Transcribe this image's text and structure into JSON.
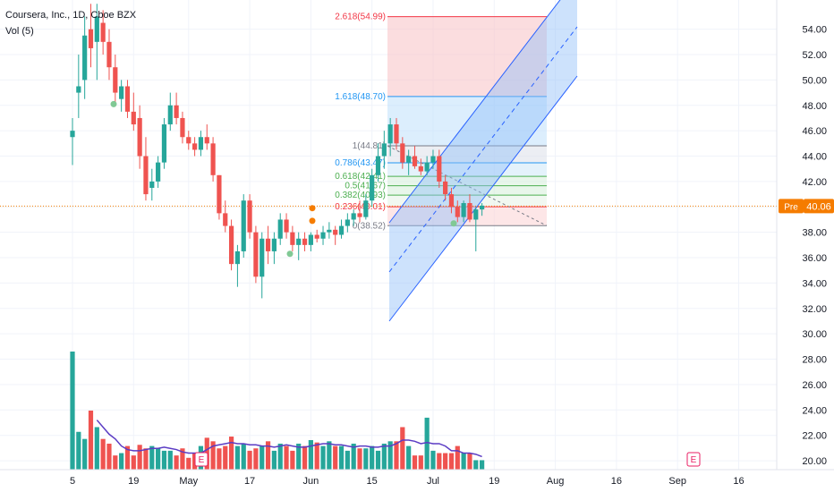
{
  "chart_title": "Coursera, Inc., 1D, Cboe BZX",
  "volume_label": "Vol (5)",
  "current_price": "40.06",
  "price_tag_prefix": "Pre",
  "colors": {
    "up": "#26a69a",
    "down": "#ef5350",
    "grid": "#f0f3fa",
    "vol_ma": "#5b3cc4",
    "channel_fill": "#90bff9",
    "channel_line": "#2962ff",
    "fib_red": "#f23645",
    "fib_blue": "#2196f3",
    "fib_green": "#4caf50",
    "fib_gray": "#787b86",
    "earnings": "#e91e63",
    "dividend": "#f57c00"
  },
  "chart_data": {
    "type": "candlestick",
    "y_axis": {
      "ylim": [
        19.3,
        56.3
      ],
      "ticks": [
        20,
        22,
        24,
        26,
        28,
        30,
        32,
        34,
        36,
        38,
        40,
        42,
        44,
        46,
        48,
        50,
        52,
        54
      ]
    },
    "x_axis_labels": [
      {
        "label": "5",
        "x_index": 0
      },
      {
        "label": "19",
        "x_index": 10
      },
      {
        "label": "May",
        "x_index": 19
      },
      {
        "label": "17",
        "x_index": 29
      },
      {
        "label": "Jun",
        "x_index": 39
      },
      {
        "label": "15",
        "x_index": 49
      },
      {
        "label": "Jul",
        "x_index": 59
      },
      {
        "label": "19",
        "x_index": 69
      },
      {
        "label": "Aug",
        "x_index": 79
      },
      {
        "label": "16",
        "x_index": 89
      },
      {
        "label": "Sep",
        "x_index": 99
      },
      {
        "label": "16",
        "x_index": 109
      }
    ],
    "candles": [
      {
        "o": 45.5,
        "h": 47.0,
        "l": 43.3,
        "c": 46.0
      },
      {
        "o": 49.0,
        "h": 52.0,
        "l": 47.0,
        "c": 49.5
      },
      {
        "o": 50.0,
        "h": 55.0,
        "l": 48.5,
        "c": 53.5
      },
      {
        "o": 54.0,
        "h": 56.0,
        "l": 51.0,
        "c": 52.5
      },
      {
        "o": 53.0,
        "h": 56.0,
        "l": 50.0,
        "c": 55.0
      },
      {
        "o": 54.5,
        "h": 55.5,
        "l": 52.0,
        "c": 53.0
      },
      {
        "o": 53.0,
        "h": 54.0,
        "l": 50.0,
        "c": 51.0
      },
      {
        "o": 51.0,
        "h": 52.0,
        "l": 48.0,
        "c": 49.0
      },
      {
        "o": 48.5,
        "h": 50.0,
        "l": 47.5,
        "c": 49.5
      },
      {
        "o": 49.5,
        "h": 50.0,
        "l": 47.0,
        "c": 47.5
      },
      {
        "o": 47.5,
        "h": 49.0,
        "l": 46.0,
        "c": 46.5
      },
      {
        "o": 47.0,
        "h": 48.0,
        "l": 43.0,
        "c": 44.0
      },
      {
        "o": 44.0,
        "h": 45.5,
        "l": 40.5,
        "c": 41.0
      },
      {
        "o": 41.5,
        "h": 43.0,
        "l": 40.5,
        "c": 42.0
      },
      {
        "o": 42.0,
        "h": 44.0,
        "l": 41.5,
        "c": 43.5
      },
      {
        "o": 43.5,
        "h": 47.0,
        "l": 43.0,
        "c": 46.5
      },
      {
        "o": 46.5,
        "h": 49.0,
        "l": 46.0,
        "c": 48.0
      },
      {
        "o": 48.0,
        "h": 49.0,
        "l": 46.5,
        "c": 47.0
      },
      {
        "o": 47.0,
        "h": 47.5,
        "l": 45.0,
        "c": 45.5
      },
      {
        "o": 45.5,
        "h": 46.0,
        "l": 44.5,
        "c": 45.0
      },
      {
        "o": 45.0,
        "h": 45.5,
        "l": 44.0,
        "c": 44.5
      },
      {
        "o": 44.5,
        "h": 46.0,
        "l": 44.0,
        "c": 45.5
      },
      {
        "o": 45.5,
        "h": 46.5,
        "l": 44.5,
        "c": 45.0
      },
      {
        "o": 45.0,
        "h": 45.5,
        "l": 42.0,
        "c": 42.5
      },
      {
        "o": 42.5,
        "h": 42.5,
        "l": 39.0,
        "c": 39.5
      },
      {
        "o": 39.5,
        "h": 40.5,
        "l": 38.0,
        "c": 38.5
      },
      {
        "o": 38.5,
        "h": 39.0,
        "l": 35.0,
        "c": 35.5
      },
      {
        "o": 35.5,
        "h": 37.0,
        "l": 33.7,
        "c": 36.5
      },
      {
        "o": 36.5,
        "h": 41.0,
        "l": 36.0,
        "c": 40.5
      },
      {
        "o": 40.5,
        "h": 41.0,
        "l": 37.5,
        "c": 38.0
      },
      {
        "o": 38.0,
        "h": 38.5,
        "l": 34.0,
        "c": 34.5
      },
      {
        "o": 34.5,
        "h": 38.0,
        "l": 32.8,
        "c": 37.5
      },
      {
        "o": 37.5,
        "h": 38.5,
        "l": 35.5,
        "c": 36.5
      },
      {
        "o": 36.5,
        "h": 38.0,
        "l": 35.5,
        "c": 37.5
      },
      {
        "o": 37.5,
        "h": 39.5,
        "l": 37.0,
        "c": 39.0
      },
      {
        "o": 39.0,
        "h": 39.5,
        "l": 37.5,
        "c": 38.0
      },
      {
        "o": 38.0,
        "h": 38.5,
        "l": 36.5,
        "c": 37.0
      },
      {
        "o": 37.0,
        "h": 38.0,
        "l": 35.8,
        "c": 37.5
      },
      {
        "o": 37.5,
        "h": 38.0,
        "l": 36.5,
        "c": 37.0
      },
      {
        "o": 37.0,
        "h": 38.0,
        "l": 36.5,
        "c": 37.8
      },
      {
        "o": 37.8,
        "h": 38.2,
        "l": 37.2,
        "c": 37.5
      },
      {
        "o": 37.5,
        "h": 38.5,
        "l": 37.0,
        "c": 38.0
      },
      {
        "o": 38.0,
        "h": 38.8,
        "l": 37.5,
        "c": 38.2
      },
      {
        "o": 38.2,
        "h": 38.5,
        "l": 37.0,
        "c": 37.8
      },
      {
        "o": 37.8,
        "h": 39.0,
        "l": 37.5,
        "c": 38.5
      },
      {
        "o": 38.5,
        "h": 39.5,
        "l": 38.0,
        "c": 39.0
      },
      {
        "o": 39.0,
        "h": 39.8,
        "l": 38.5,
        "c": 39.5
      },
      {
        "o": 39.5,
        "h": 40.5,
        "l": 38.8,
        "c": 39.2
      },
      {
        "o": 39.2,
        "h": 41.0,
        "l": 39.0,
        "c": 40.5
      },
      {
        "o": 40.5,
        "h": 43.0,
        "l": 40.0,
        "c": 42.5
      },
      {
        "o": 42.5,
        "h": 45.0,
        "l": 42.0,
        "c": 44.0
      },
      {
        "o": 44.0,
        "h": 46.0,
        "l": 43.0,
        "c": 45.0
      },
      {
        "o": 45.0,
        "h": 47.0,
        "l": 44.0,
        "c": 46.5
      },
      {
        "o": 46.5,
        "h": 47.0,
        "l": 44.5,
        "c": 45.0
      },
      {
        "o": 45.0,
        "h": 45.5,
        "l": 43.0,
        "c": 43.5
      },
      {
        "o": 43.5,
        "h": 44.5,
        "l": 42.5,
        "c": 44.0
      },
      {
        "o": 44.0,
        "h": 44.8,
        "l": 43.0,
        "c": 43.2
      },
      {
        "o": 43.2,
        "h": 43.8,
        "l": 42.5,
        "c": 42.8
      },
      {
        "o": 42.8,
        "h": 44.0,
        "l": 42.5,
        "c": 43.5
      },
      {
        "o": 43.5,
        "h": 44.5,
        "l": 43.0,
        "c": 44.0
      },
      {
        "o": 44.0,
        "h": 44.5,
        "l": 41.5,
        "c": 42.0
      },
      {
        "o": 42.0,
        "h": 42.5,
        "l": 40.5,
        "c": 41.0
      },
      {
        "o": 41.0,
        "h": 41.5,
        "l": 39.5,
        "c": 40.0
      },
      {
        "o": 40.0,
        "h": 40.5,
        "l": 38.8,
        "c": 39.2
      },
      {
        "o": 39.2,
        "h": 40.5,
        "l": 38.8,
        "c": 40.3
      },
      {
        "o": 40.3,
        "h": 41.0,
        "l": 38.8,
        "c": 39.0
      },
      {
        "o": 39.0,
        "h": 40.0,
        "l": 36.5,
        "c": 39.8
      },
      {
        "o": 39.8,
        "h": 40.3,
        "l": 39.3,
        "c": 40.1
      }
    ],
    "volume": {
      "ylim": [
        0,
        1
      ],
      "bars": [
        1.0,
        0.32,
        0.26,
        0.5,
        0.36,
        0.26,
        0.22,
        0.12,
        0.14,
        0.2,
        0.12,
        0.21,
        0.18,
        0.2,
        0.18,
        0.16,
        0.16,
        0.12,
        0.18,
        0.1,
        0.14,
        0.2,
        0.27,
        0.24,
        0.18,
        0.2,
        0.28,
        0.2,
        0.22,
        0.16,
        0.18,
        0.2,
        0.24,
        0.16,
        0.22,
        0.2,
        0.16,
        0.22,
        0.2,
        0.25,
        0.23,
        0.2,
        0.24,
        0.2,
        0.2,
        0.16,
        0.22,
        0.18,
        0.18,
        0.2,
        0.16,
        0.22,
        0.24,
        0.24,
        0.36,
        0.2,
        0.12,
        0.12,
        0.44,
        0.16,
        0.14,
        0.14,
        0.14,
        0.2,
        0.14,
        0.14,
        0.08,
        0.08
      ],
      "ma": [
        null,
        null,
        null,
        null,
        0.42,
        0.36,
        0.3,
        0.26,
        0.2,
        0.17,
        0.16,
        0.16,
        0.17,
        0.18,
        0.18,
        0.19,
        0.18,
        0.17,
        0.15,
        0.14,
        0.14,
        0.14,
        0.17,
        0.2,
        0.21,
        0.22,
        0.23,
        0.22,
        0.22,
        0.21,
        0.21,
        0.2,
        0.2,
        0.19,
        0.2,
        0.21,
        0.2,
        0.19,
        0.19,
        0.2,
        0.21,
        0.22,
        0.22,
        0.21,
        0.21,
        0.2,
        0.19,
        0.2,
        0.2,
        0.19,
        0.19,
        0.2,
        0.2,
        0.22,
        0.25,
        0.25,
        0.24,
        0.22,
        0.23,
        0.22,
        0.22,
        0.2,
        0.16,
        0.16,
        0.14,
        0.14,
        0.13,
        0.11
      ]
    },
    "fibonacci_labels": [
      {
        "text": "2.618(54.99)",
        "price": 54.99,
        "color": "fib_red"
      },
      {
        "text": "1.618(48.70)",
        "price": 48.7,
        "color": "fib_blue"
      },
      {
        "text": "1(44.81)",
        "price": 44.81,
        "color": "fib_gray"
      },
      {
        "text": "0.786(43.47)",
        "price": 43.47,
        "color": "fib_blue"
      },
      {
        "text": "0.618(42.41)",
        "price": 42.41,
        "color": "fib_green"
      },
      {
        "text": "0.5(41.67)",
        "price": 41.67,
        "color": "fib_green"
      },
      {
        "text": "0.382(40.93)",
        "price": 40.93,
        "color": "fib_green"
      },
      {
        "text": "0.236(40.01)",
        "price": 40.01,
        "color": "fib_red"
      },
      {
        "text": "0(38.52)",
        "price": 38.52,
        "color": "fib_gray"
      }
    ],
    "earnings_marker": "E"
  }
}
